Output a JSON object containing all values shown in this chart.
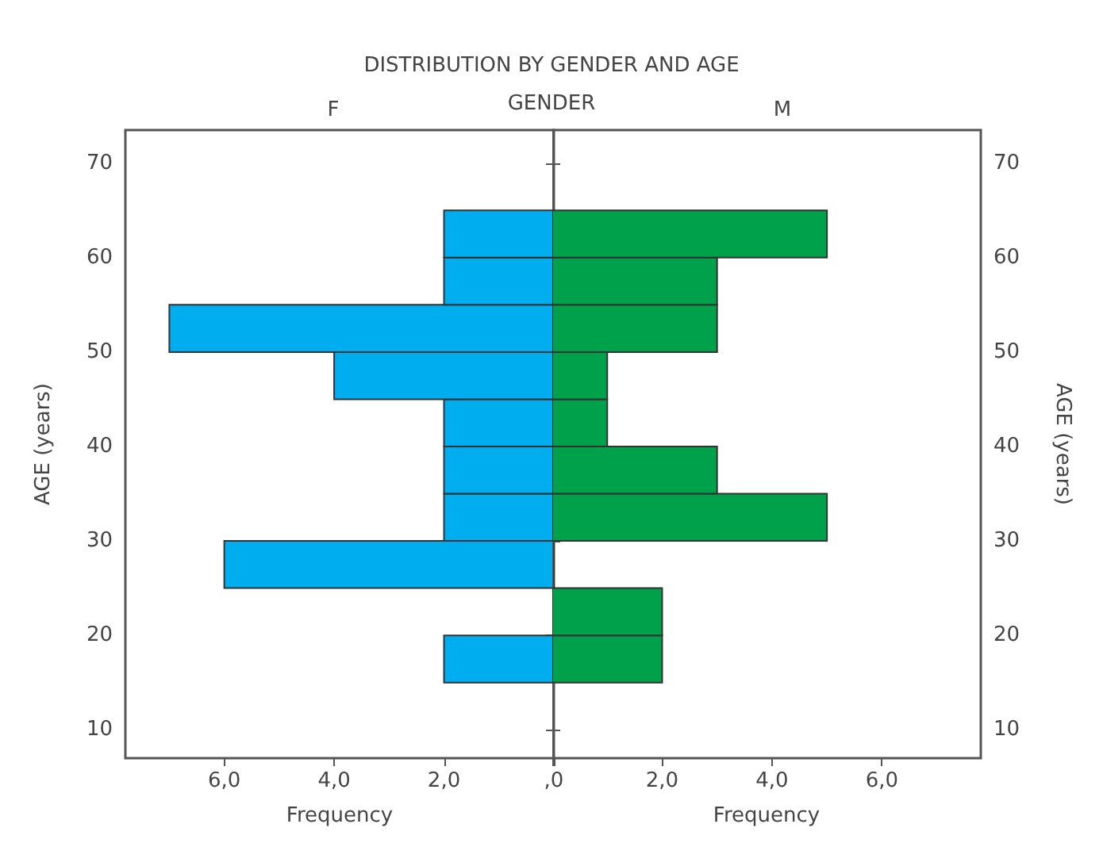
{
  "chart_data": [
    {
      "type": "histogram",
      "orientation": "horizontal",
      "title": "F",
      "annotations": [
        "DISTRIBUTION BY GENDER AND AGE",
        "GENDER"
      ],
      "xlabel": "Frequency",
      "ylabel": "AGE (years)",
      "bins": [
        15,
        20,
        25,
        30,
        35,
        40,
        45,
        50,
        55,
        60,
        65
      ],
      "series": [
        {
          "color": "#00aeef",
          "values": [
            2,
            0,
            6,
            2,
            2,
            2,
            4,
            7,
            2,
            2
          ]
        }
      ],
      "xlim": [
        7.8,
        0
      ],
      "xticks": [
        {
          "value": 6,
          "label": "6,0"
        },
        {
          "value": 4,
          "label": "4,0"
        },
        {
          "value": 2,
          "label": "2,0"
        },
        {
          "value": 0,
          "label": ",0"
        }
      ],
      "ylim": [
        7,
        73.5
      ],
      "yticks": [
        10,
        20,
        30,
        40,
        50,
        60,
        70
      ],
      "grid": false
    },
    {
      "type": "histogram",
      "orientation": "horizontal",
      "title": "M",
      "xlabel": "Frequency",
      "ylabel": "AGE (years)",
      "bins": [
        15,
        20,
        25,
        30,
        35,
        40,
        45,
        50,
        55,
        60,
        65
      ],
      "series": [
        {
          "color": "#00a14b",
          "values": [
            2,
            2,
            0,
            5,
            3,
            1,
            1,
            3,
            3,
            5
          ]
        }
      ],
      "xlim": [
        0,
        7.8
      ],
      "xticks": [
        {
          "value": 0,
          "label": null
        },
        {
          "value": 2,
          "label": "2,0"
        },
        {
          "value": 4,
          "label": "4,0"
        },
        {
          "value": 6,
          "label": "6,0"
        }
      ],
      "ylim": [
        7,
        73.5
      ],
      "yticks": [
        10,
        20,
        30,
        40,
        50,
        60,
        70
      ],
      "grid": false
    }
  ]
}
